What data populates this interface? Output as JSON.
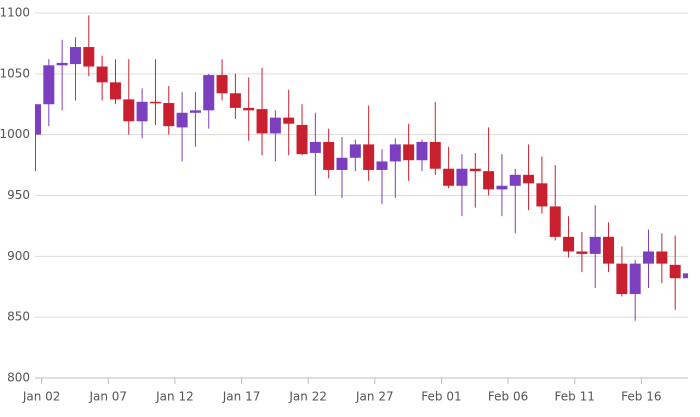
{
  "chart_data": {
    "type": "candlestick",
    "x": [
      0.5,
      1.5,
      2.5,
      3.5,
      4.5,
      5.5,
      6.5,
      7.5,
      8.5,
      9.5,
      10.5,
      11.5,
      12.5,
      13.5,
      14.5,
      15.5,
      16.5,
      17.5,
      18.5,
      19.5,
      20.5,
      21.5,
      22.5,
      23.5,
      24.5,
      25.5,
      26.5,
      27.5,
      28.5,
      29.5,
      30.5,
      31.5,
      32.5,
      33.5,
      34.5,
      35.5,
      36.5,
      37.5,
      38.5,
      39.5,
      40.5,
      41.5,
      42.5,
      43.5,
      44.5,
      45.5,
      46.5,
      47.5,
      48.5,
      49.5
    ],
    "open": [
      1000,
      1025,
      1057,
      1058,
      1072,
      1056,
      1043,
      1029,
      1011,
      1027,
      1026,
      1006,
      1018,
      1020,
      1049,
      1034,
      1022,
      1021,
      1001,
      1014,
      1008,
      985,
      994,
      971,
      981,
      992,
      971,
      978,
      992,
      979,
      994,
      972,
      958,
      972,
      970,
      955,
      958,
      967,
      960,
      941,
      916,
      904,
      902,
      916,
      894,
      869,
      894,
      904,
      893,
      882
    ],
    "high": [
      1025,
      1062,
      1078,
      1080,
      1098,
      1065,
      1062,
      1062,
      1038,
      1062,
      1040,
      1035,
      1035,
      1050,
      1062,
      1050,
      1047,
      1055,
      1020,
      1037,
      1025,
      1018,
      1005,
      998,
      996,
      1024,
      988,
      997,
      1009,
      996,
      1027,
      990,
      984,
      985,
      1006,
      984,
      972,
      992,
      982,
      975,
      933,
      920,
      942,
      928,
      908,
      897,
      922,
      919,
      917,
      912
    ],
    "low": [
      970,
      1007,
      1020,
      1028,
      1048,
      1028,
      1025,
      1000,
      997,
      1008,
      1000,
      978,
      990,
      1005,
      1028,
      1013,
      995,
      983,
      978,
      983,
      983,
      950,
      964,
      948,
      970,
      962,
      943,
      948,
      962,
      970,
      967,
      956,
      933,
      940,
      950,
      933,
      919,
      938,
      935,
      913,
      899,
      887,
      874,
      887,
      867,
      847,
      874,
      878,
      856,
      864
    ],
    "close": [
      1025,
      1057,
      1059,
      1072,
      1056,
      1043,
      1029,
      1011,
      1027,
      1026,
      1007,
      1018,
      1020,
      1049,
      1034,
      1022,
      1020,
      1001,
      1014,
      1009,
      984,
      994,
      971,
      981,
      992,
      971,
      978,
      992,
      979,
      994,
      972,
      958,
      972,
      970,
      955,
      958,
      967,
      960,
      941,
      916,
      904,
      902,
      916,
      894,
      869,
      894,
      904,
      894,
      882,
      886
    ],
    "up_color": "#7b3fbf",
    "down_color": "#c8202f",
    "xlim": [
      0.5,
      49.5
    ],
    "xticks": [
      {
        "value": 1,
        "label": "Jan 02"
      },
      {
        "value": 6,
        "label": "Jan 07"
      },
      {
        "value": 11,
        "label": "Jan 12"
      },
      {
        "value": 16,
        "label": "Jan 17"
      },
      {
        "value": 21,
        "label": "Jan 22"
      },
      {
        "value": 26,
        "label": "Jan 27"
      },
      {
        "value": 31,
        "label": "Feb 01"
      },
      {
        "value": 36,
        "label": "Feb 06"
      },
      {
        "value": 41,
        "label": "Feb 11"
      },
      {
        "value": 46,
        "label": "Feb 16"
      }
    ],
    "ylim": [
      800,
      1100
    ],
    "yticks": [
      800,
      850,
      900,
      950,
      1000,
      1050,
      1100
    ],
    "grid": true
  }
}
